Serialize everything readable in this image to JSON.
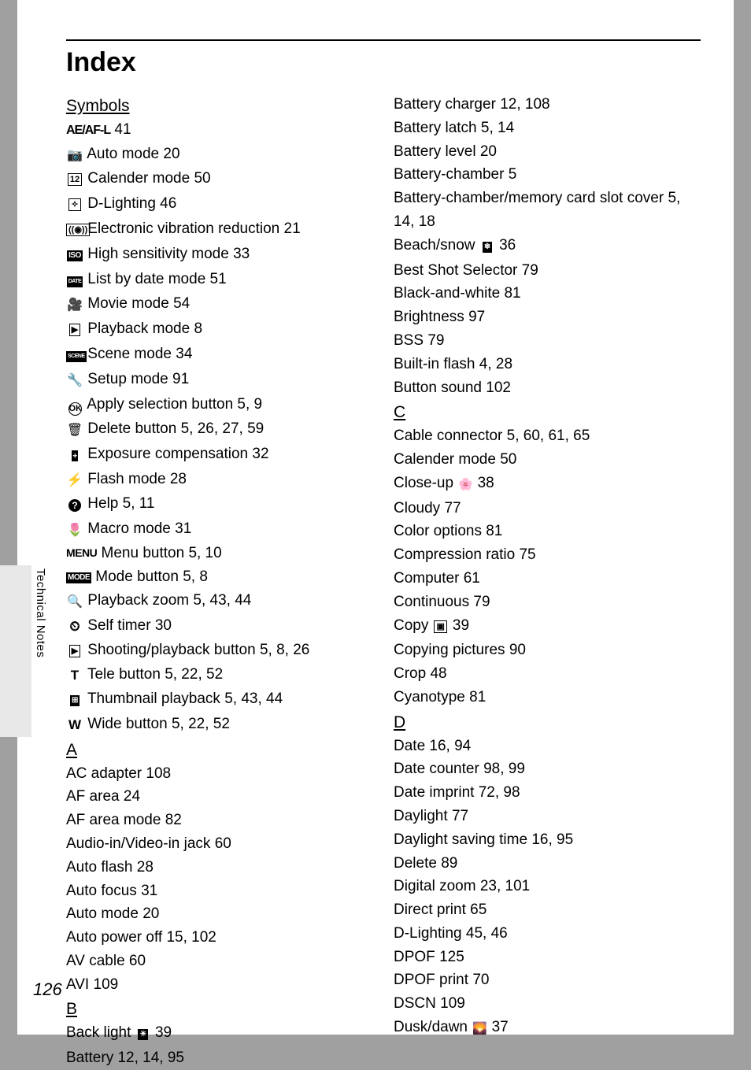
{
  "page": {
    "title": "Index",
    "number": "126",
    "tab_label": "Technical Notes"
  },
  "sections": {
    "symbols": "Symbols",
    "a": "A",
    "b": "B",
    "c": "C",
    "d": "D"
  },
  "col1": {
    "sym": [
      {
        "icon": "ae",
        "text": "",
        "pages": "41"
      },
      {
        "icon": "camera",
        "text": "Auto mode",
        "pages": "20"
      },
      {
        "icon": "calendar",
        "text": "Calender mode",
        "pages": "50"
      },
      {
        "icon": "dlight",
        "text": "D-Lighting",
        "pages": "46"
      },
      {
        "icon": "evr",
        "text": "Electronic vibration reduction",
        "pages": "21"
      },
      {
        "icon": "iso",
        "text": "High sensitivity mode",
        "pages": "33"
      },
      {
        "icon": "date",
        "text": "List by date mode",
        "pages": "51"
      },
      {
        "icon": "movie",
        "text": "Movie mode",
        "pages": "54"
      },
      {
        "icon": "play",
        "text": "Playback mode",
        "pages": "8"
      },
      {
        "icon": "scene",
        "text": "Scene mode",
        "pages": "34"
      },
      {
        "icon": "wrench",
        "text": "Setup mode",
        "pages": "91"
      },
      {
        "icon": "ok",
        "text": "Apply selection button",
        "pages": "5, 9"
      },
      {
        "icon": "trash",
        "text": "Delete button",
        "pages": "5, 26, 27, 59"
      },
      {
        "icon": "exp",
        "text": "Exposure compensation",
        "pages": "32"
      },
      {
        "icon": "flash",
        "text": "Flash mode",
        "pages": "28"
      },
      {
        "icon": "help",
        "text": "Help",
        "pages": "5, 11"
      },
      {
        "icon": "macro",
        "text": "Macro mode",
        "pages": "31"
      },
      {
        "icon": "menu",
        "text": "Menu button",
        "pages": "5, 10"
      },
      {
        "icon": "mode",
        "text": "Mode button",
        "pages": "5, 8"
      },
      {
        "icon": "zoom",
        "text": "Playback zoom",
        "pages": "5, 43, 44"
      },
      {
        "icon": "timer",
        "text": "Self timer",
        "pages": "30"
      },
      {
        "icon": "play",
        "text": "Shooting/playback button",
        "pages": "5, 8, 26"
      },
      {
        "icon": "T",
        "text": "Tele button",
        "pages": "5, 22, 52"
      },
      {
        "icon": "thumb",
        "text": "Thumbnail playback",
        "pages": "5, 43, 44"
      },
      {
        "icon": "W",
        "text": "Wide button",
        "pages": "5, 22, 52"
      }
    ],
    "a": [
      {
        "text": "AC adapter",
        "pages": "108"
      },
      {
        "text": "AF area",
        "pages": "24"
      },
      {
        "text": "AF area mode",
        "pages": "82"
      },
      {
        "text": "Audio-in/Video-in jack",
        "pages": "60"
      },
      {
        "text": "Auto flash",
        "pages": "28"
      },
      {
        "text": "Auto focus",
        "pages": "31"
      },
      {
        "text": "Auto mode",
        "pages": "20"
      },
      {
        "text": "Auto power off",
        "pages": "15, 102"
      },
      {
        "text": "AV cable",
        "pages": "60"
      },
      {
        "text": "AVI",
        "pages": "109"
      }
    ],
    "b": [
      {
        "text": "Back light",
        "inline_icon": "backlight",
        "pages": "39"
      },
      {
        "text": "Battery",
        "pages": "12, 14, 95"
      }
    ]
  },
  "col2": {
    "b_cont": [
      {
        "text": "Battery charger",
        "pages": "12, 108"
      },
      {
        "text": "Battery latch",
        "pages": "5, 14"
      },
      {
        "text": "Battery level",
        "pages": "20"
      },
      {
        "text": "Battery-chamber",
        "pages": "5"
      },
      {
        "text": "Battery-chamber/memory card slot cover",
        "pages": "5, 14, 18",
        "wrap": true
      },
      {
        "text": "Beach/snow",
        "inline_icon": "beach",
        "pages": "36"
      },
      {
        "text": "Best Shot Selector",
        "pages": "79"
      },
      {
        "text": "Black-and-white",
        "pages": "81"
      },
      {
        "text": "Brightness",
        "pages": "97"
      },
      {
        "text": "BSS",
        "pages": "79"
      },
      {
        "text": "Built-in flash",
        "pages": "4, 28"
      },
      {
        "text": "Button sound",
        "pages": "102"
      }
    ],
    "c": [
      {
        "text": "Cable connector",
        "pages": "5, 60, 61, 65"
      },
      {
        "text": "Calender mode",
        "pages": "50"
      },
      {
        "text": "Close-up",
        "inline_icon": "closeup",
        "pages": "38"
      },
      {
        "text": "Cloudy",
        "pages": "77"
      },
      {
        "text": "Color options",
        "pages": "81"
      },
      {
        "text": "Compression ratio",
        "pages": "75"
      },
      {
        "text": "Computer",
        "pages": "61"
      },
      {
        "text": "Continuous",
        "pages": "79"
      },
      {
        "text": "Copy",
        "inline_icon": "copy",
        "pages": "39"
      },
      {
        "text": "Copying pictures",
        "pages": "90"
      },
      {
        "text": "Crop",
        "pages": "48"
      },
      {
        "text": "Cyanotype",
        "pages": "81"
      }
    ],
    "d": [
      {
        "text": "Date",
        "pages": "16, 94"
      },
      {
        "text": "Date counter",
        "pages": "98, 99"
      },
      {
        "text": "Date imprint",
        "pages": "72, 98"
      },
      {
        "text": "Daylight",
        "pages": "77"
      },
      {
        "text": "Daylight saving time",
        "pages": "16, 95"
      },
      {
        "text": "Delete",
        "pages": "89"
      },
      {
        "text": "Digital zoom",
        "pages": "23, 101"
      },
      {
        "text": "Direct print",
        "pages": "65"
      },
      {
        "text": "D-Lighting",
        "pages": "45, 46"
      },
      {
        "text": "DPOF",
        "pages": "125"
      },
      {
        "text": "DPOF print",
        "pages": "70"
      },
      {
        "text": "DSCN",
        "pages": "109"
      },
      {
        "text": "Dusk/dawn",
        "inline_icon": "dusk",
        "pages": "37"
      }
    ]
  }
}
